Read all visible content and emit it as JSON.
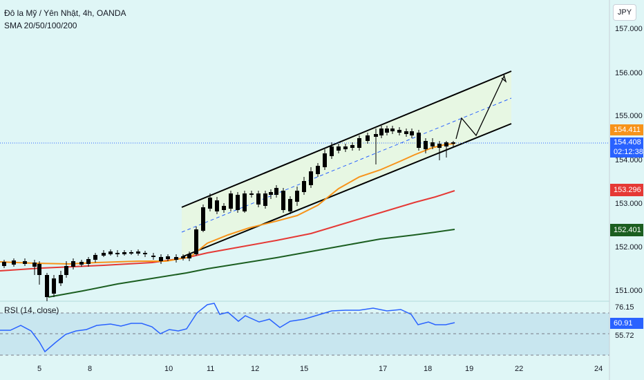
{
  "header": {
    "title": "Đô la Mỹ / Yên Nhật, 4h, OANDA",
    "indicator": "SMA 20/50/100/200",
    "currency": "JPY"
  },
  "price_axis": {
    "ticks": [
      "157.000",
      "156.000",
      "155.000",
      "154.000",
      "153.000",
      "152.000",
      "151.000"
    ]
  },
  "time_axis": {
    "ticks": [
      "5",
      "8",
      "10",
      "11",
      "12",
      "15",
      "17",
      "18",
      "19",
      "22",
      "24"
    ]
  },
  "badges": {
    "sma20": {
      "value": "154.411",
      "color": "#f7931a"
    },
    "last_price": {
      "value": "154.408",
      "color": "#2962ff"
    },
    "countdown": {
      "value": "02:12:38",
      "color": "#2962ff"
    },
    "sma100": {
      "value": "153.296",
      "color": "#e53935"
    },
    "sma200": {
      "value": "152.401",
      "color": "#1b5e20"
    }
  },
  "rsi": {
    "title": "RSI (14, close)",
    "upper": "76.15",
    "value": "60.91",
    "lower": "55.72",
    "value_color": "#2962ff"
  },
  "colors": {
    "up": "#2962ff",
    "down": "#000000",
    "sma20": "#f7931a",
    "sma100": "#e53935",
    "sma200": "#1b5e20",
    "channel": "#000000"
  }
}
